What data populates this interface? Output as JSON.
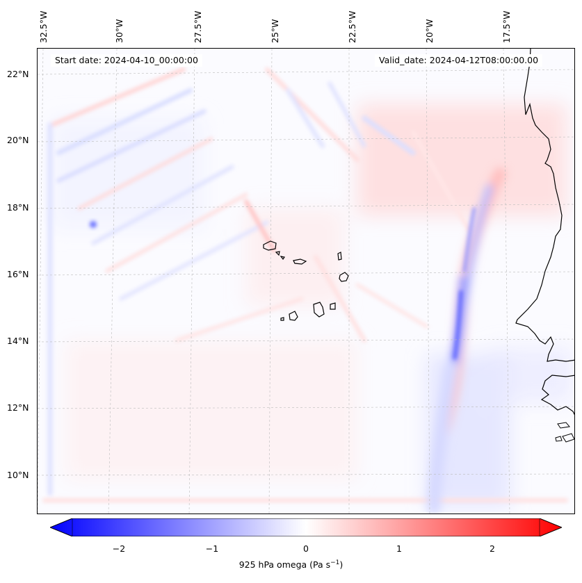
{
  "header": {
    "start_date": "Start date: 2024-04-10_00:00:00",
    "valid_date": "Valid_date: 2024-04-12T08:00:00.00"
  },
  "axes": {
    "lon_labels": [
      "32.5°W",
      "30°W",
      "27.5°W",
      "25°W",
      "22.5°W",
      "20°W",
      "17.5°W"
    ],
    "lat_labels": [
      "22°N",
      "20°N",
      "18°N",
      "16°N",
      "14°N",
      "12°N",
      "10°N"
    ]
  },
  "colorbar": {
    "title": "925 hPa omega (Pa s",
    "title_sup": "−1",
    "title_end": ")",
    "ticks": [
      "−2",
      "−1",
      "0",
      "1",
      "2"
    ],
    "min_color": "#0000ff",
    "mid_color": "#ffffff",
    "max_color": "#ff0000"
  },
  "colors": {
    "coastline": "#000000",
    "gridline": "#bbbbbb"
  }
}
